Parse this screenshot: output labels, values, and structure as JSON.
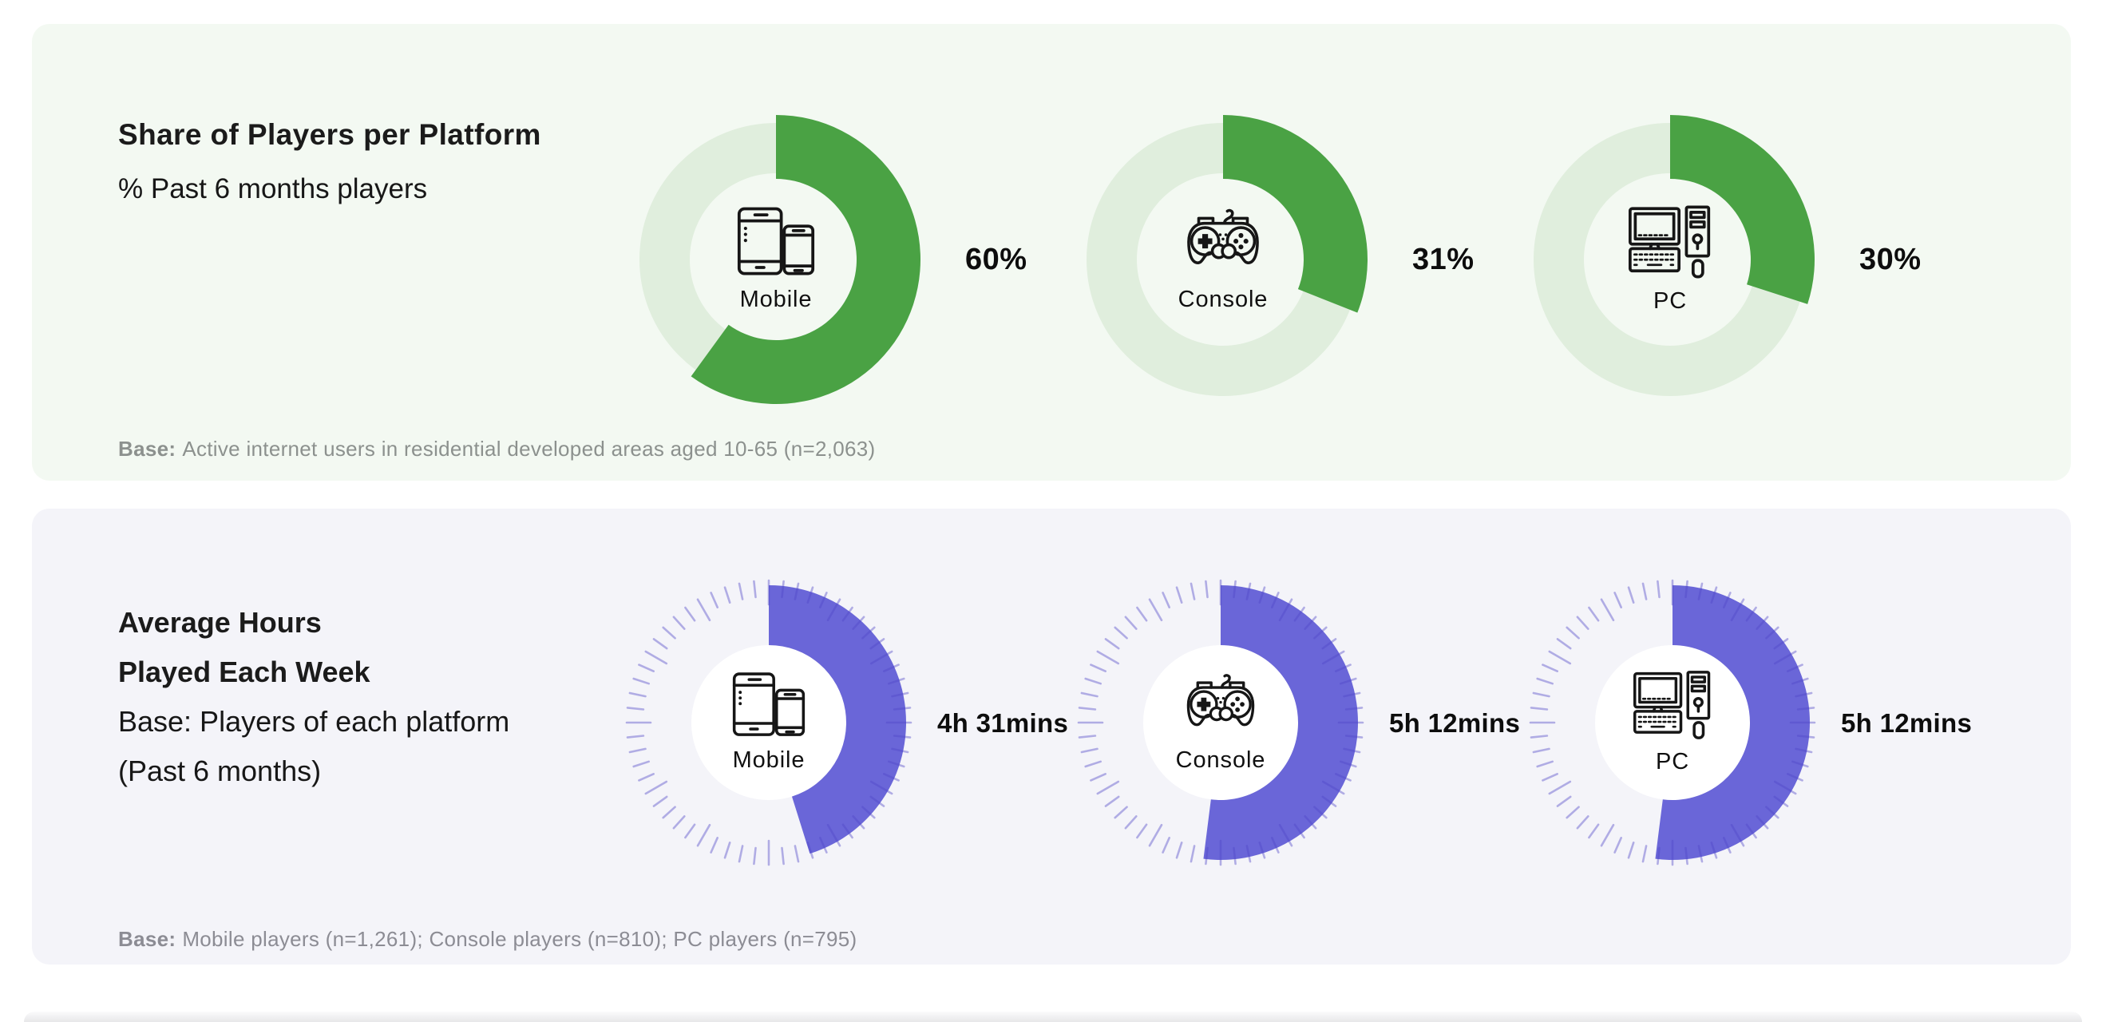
{
  "top_panel": {
    "background": "#f3f9f2",
    "title": "Share of Players per Platform",
    "subtitle": "% Past 6 months players",
    "base_note_prefix": "Base:",
    "base_note": "Active internet users in residential developed areas aged 10-65 (n=2,063)"
  },
  "bottom_panel": {
    "background": "#f4f4f9",
    "title_line1": "Average Hours",
    "title_line2": "Played Each Week",
    "title_line3": "Base: Players of each platform",
    "title_line4": "(Past 6 months)",
    "base_note_prefix": "Base:",
    "base_note": "Mobile players (n=1,261); Console players (n=810); PC players (n=795)"
  },
  "icons": {
    "mobile": "mobile-devices-icon",
    "console": "gamepad-icon",
    "pc": "desktop-computer-icon"
  },
  "chart_data": [
    {
      "type": "pie",
      "variant": "donut",
      "title": "Share of Players per Platform",
      "subtitle": "% Past 6 months players",
      "unit": "%",
      "categories": [
        "Mobile",
        "Console",
        "PC"
      ],
      "values": [
        60,
        31,
        30
      ],
      "labels": [
        "60%",
        "31%",
        "30%"
      ],
      "color": "#4aa244",
      "track_color": "#e0eedd",
      "start_angle_deg": 0,
      "direction": "clockwise"
    },
    {
      "type": "pie",
      "variant": "gauge",
      "title": "Average Hours Played Each Week",
      "unit": "hours",
      "scale_max_hours": 10,
      "categories": [
        "Mobile",
        "Console",
        "PC"
      ],
      "values_hours": [
        4.517,
        5.2,
        5.2
      ],
      "labels": [
        "4h 31mins",
        "5h 12mins",
        "5h 12mins"
      ],
      "color": "#6a66d8",
      "tick_color": "rgba(82,72,200,0.42)",
      "tick_count": 60,
      "start_angle_deg": 0,
      "direction": "clockwise"
    }
  ]
}
